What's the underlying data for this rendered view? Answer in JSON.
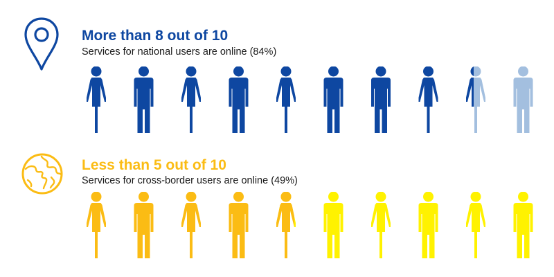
{
  "colors": {
    "national": "#0e47a1",
    "national_light": "#a3bfdf",
    "cross_dark": "#fbbc14",
    "cross_light": "#fff200"
  },
  "icons": {
    "national": "location-pin-icon",
    "cross": "globe-icon"
  },
  "chart_data": [
    {
      "type": "pictograph",
      "title": "More than 8 out of 10",
      "subtitle": "Services for national users are online (84%)",
      "value": 8.4,
      "total": 10,
      "unit_icons": [
        "female",
        "male",
        "female",
        "male",
        "female",
        "male",
        "male",
        "female",
        "female",
        "male"
      ],
      "filled_color": "#0e47a1",
      "empty_color": "#a3bfdf"
    },
    {
      "type": "pictograph",
      "title": "Less than 5 out of 10",
      "subtitle": "Services for cross-border users are online (49%)",
      "value": 4.9,
      "total": 10,
      "unit_icons": [
        "female",
        "male",
        "female",
        "male",
        "female",
        "male",
        "female",
        "male",
        "female",
        "male"
      ],
      "filled_color": "#fbbc14",
      "empty_color": "#fff200"
    }
  ]
}
